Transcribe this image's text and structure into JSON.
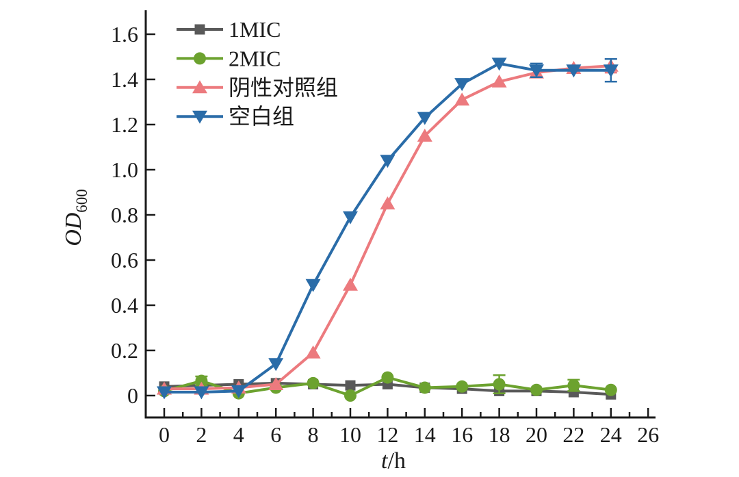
{
  "figure": {
    "background": "#ffffff",
    "ink_color": "#1a1a1a"
  },
  "chart_data": {
    "type": "line",
    "title": "",
    "xlabel": {
      "italic": "t",
      "rest": "/h"
    },
    "ylabel": {
      "italic": "OD",
      "sub": "600"
    },
    "xlim": [
      -1,
      26.5
    ],
    "ylim": [
      -0.1,
      1.7
    ],
    "grid": false,
    "legend_position": "top-left",
    "xticks": {
      "values": [
        0,
        2,
        4,
        6,
        8,
        10,
        12,
        14,
        16,
        18,
        20,
        22,
        24,
        26
      ],
      "labels": [
        "0",
        "2",
        "4",
        "6",
        "8",
        "10",
        "12",
        "14",
        "16",
        "18",
        "20",
        "22",
        "24",
        "26"
      ]
    },
    "xminorticks": [
      1,
      3,
      5,
      7,
      9,
      11,
      13,
      15,
      17,
      19,
      21,
      23,
      25
    ],
    "yticks": {
      "values": [
        0,
        0.2,
        0.4,
        0.6,
        0.8,
        1.0,
        1.2,
        1.4,
        1.6
      ],
      "labels": [
        "0",
        "0.2",
        "0.4",
        "0.6",
        "0.8",
        "1.0",
        "1.2",
        "1.4",
        "1.6"
      ]
    },
    "x": [
      0,
      2,
      4,
      6,
      8,
      10,
      12,
      14,
      16,
      18,
      20,
      22,
      24
    ],
    "series": [
      {
        "name": "1MIC",
        "color": "#595959",
        "marker": "square",
        "values": [
          0.04,
          0.045,
          0.05,
          0.055,
          0.05,
          0.045,
          0.05,
          0.035,
          0.03,
          0.02,
          0.02,
          0.015,
          0.005
        ],
        "error_bars": []
      },
      {
        "name": "2MIC",
        "color": "#6CA22F",
        "marker": "circle",
        "values": [
          0.02,
          0.065,
          0.01,
          0.035,
          0.055,
          0.0,
          0.08,
          0.035,
          0.04,
          0.05,
          0.025,
          0.045,
          0.025
        ],
        "error_bars": [
          {
            "x": 2,
            "plus": 0.02,
            "minus": 0.02
          },
          {
            "x": 18,
            "plus": 0.04,
            "minus": 0.04
          },
          {
            "x": 22,
            "plus": 0.025,
            "minus": 0.025
          }
        ]
      },
      {
        "name": "阴性对照组",
        "color": "#EC7A7E",
        "marker": "triangle-up",
        "values": [
          0.03,
          0.03,
          0.035,
          0.05,
          0.19,
          0.49,
          0.85,
          1.15,
          1.31,
          1.39,
          1.43,
          1.45,
          1.46
        ],
        "error_bars": [
          {
            "x": 24,
            "plus": 0.03,
            "minus": 0.03
          }
        ]
      },
      {
        "name": "空白组",
        "color": "#2A6CA8",
        "marker": "triangle-down",
        "values": [
          0.015,
          0.015,
          0.02,
          0.14,
          0.49,
          0.79,
          1.04,
          1.23,
          1.38,
          1.47,
          1.44,
          1.44,
          1.44
        ],
        "error_bars": [
          {
            "x": 20,
            "plus": 0.03,
            "minus": 0.03
          },
          {
            "x": 24,
            "plus": 0.05,
            "minus": 0.05
          }
        ]
      }
    ]
  }
}
